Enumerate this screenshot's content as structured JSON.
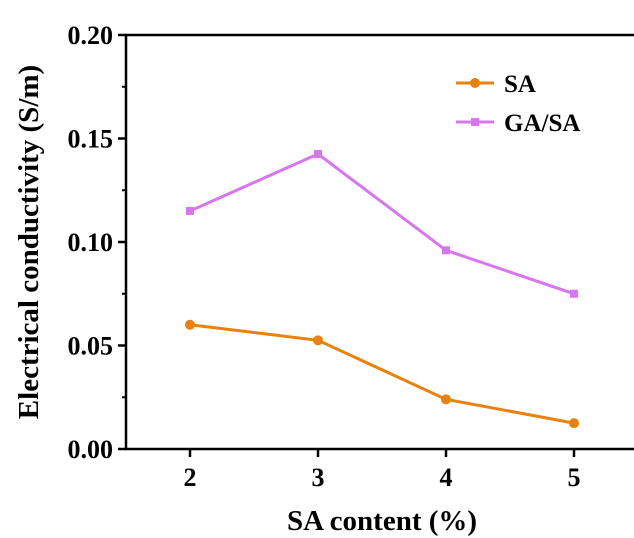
{
  "chart_data": {
    "type": "line",
    "xlabel": "SA content (%)",
    "ylabel": "Electrical conductivity (S/m)",
    "x": [
      2,
      3,
      4,
      5
    ],
    "xticks": [
      "2",
      "3",
      "4",
      "5"
    ],
    "xlim": [
      1.5,
      5.5
    ],
    "yticks": [
      "0.00",
      "0.05",
      "0.10",
      "0.15",
      "0.20"
    ],
    "ylim": [
      0,
      0.2
    ],
    "grid": false,
    "legend_position": "top-right",
    "series": [
      {
        "name": "SA",
        "values": [
          0.06,
          0.0525,
          0.024,
          0.0125
        ],
        "color": "#e8820c",
        "marker": "circle"
      },
      {
        "name": "GA/SA",
        "values": [
          0.115,
          0.1425,
          0.096,
          0.075
        ],
        "color": "#d876ee",
        "marker": "square"
      }
    ]
  }
}
